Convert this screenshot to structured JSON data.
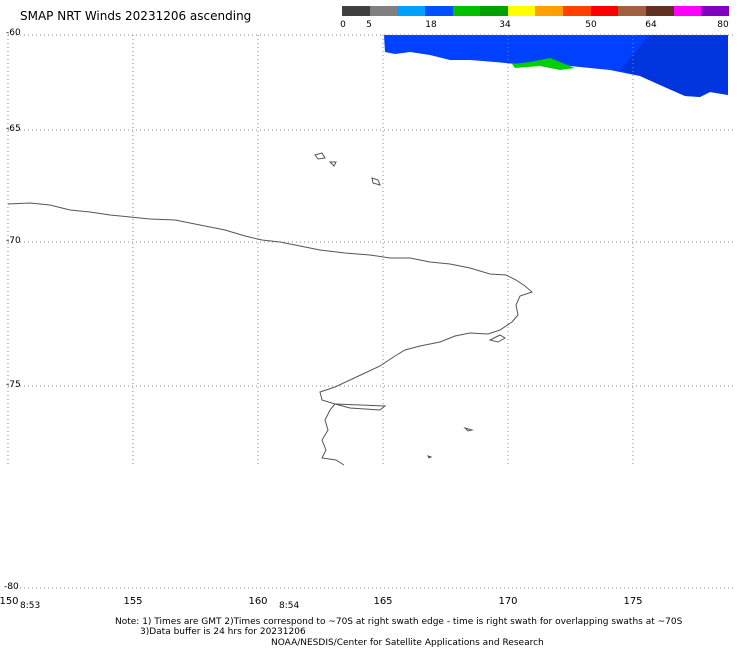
{
  "title": "SMAP NRT Winds 20231206 ascending",
  "scale": {
    "labels": [
      "0",
      "5",
      "18",
      "34",
      "50",
      "64",
      "80"
    ],
    "colors": [
      "#404040",
      "#808080",
      "#00a0ff",
      "#0050ff",
      "#00c000",
      "#00a000",
      "#ffff00",
      "#ffa000",
      "#ff4000",
      "#ff0000",
      "#a06040",
      "#603020",
      "#ff00ff",
      "#8000c0"
    ]
  },
  "latitudes": [
    "-60",
    "-65",
    "-70",
    "-75",
    "-80"
  ],
  "longitudes": [
    "150",
    "155",
    "160",
    "165",
    "170",
    "175"
  ],
  "times": [
    "8:53",
    "8:54"
  ],
  "notes": {
    "line1": "Note: 1) Times are GMT 2)Times correspond to ~70S at right swath edge - time is right swath for overlapping swaths at ~70S",
    "line2": "3)Data buffer is 24 hrs for 20231206",
    "line3": "NOAA/NESDIS/Center for Satellite Applications and Research"
  },
  "colors": {
    "coastline": "#555555",
    "grid": "#888888",
    "swath_blue": "#0040ff",
    "swath_green": "#00d000"
  }
}
